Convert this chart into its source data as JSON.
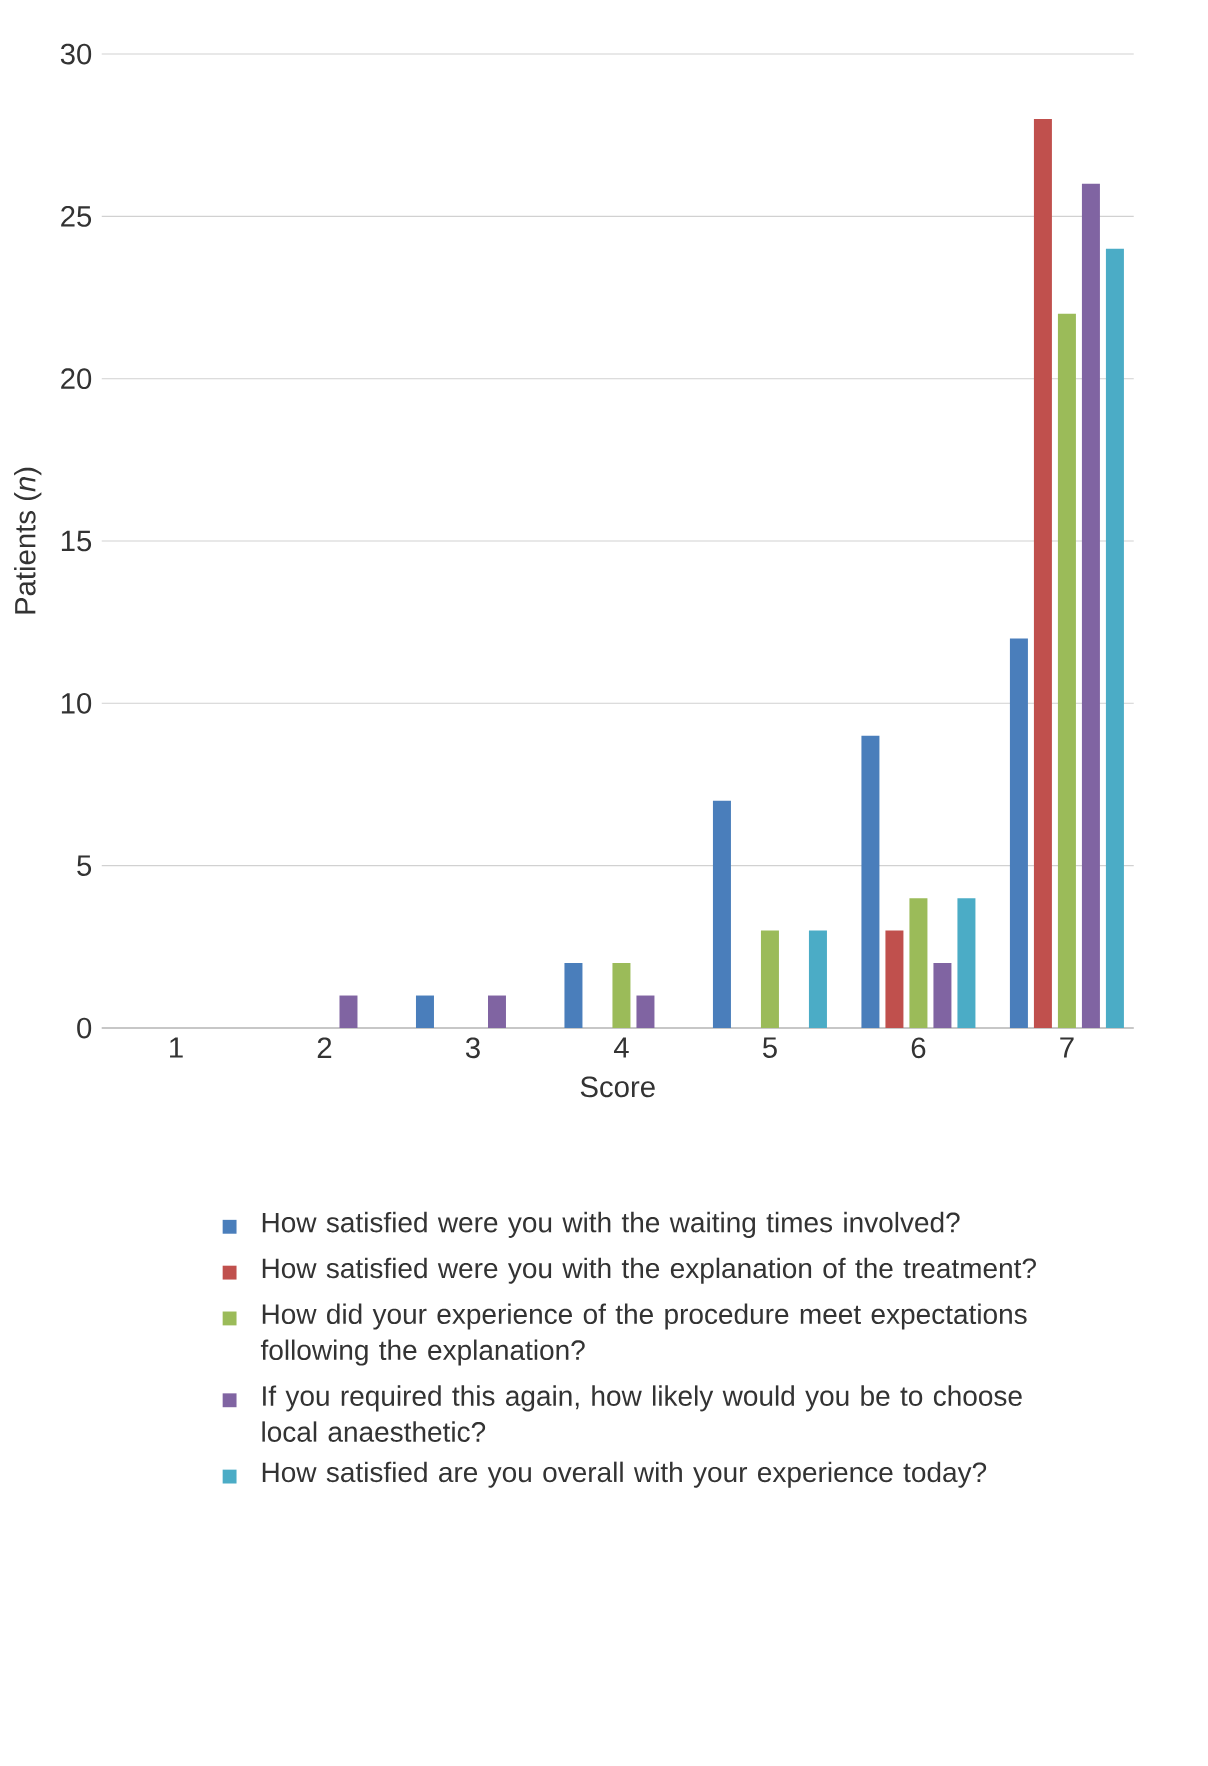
{
  "chart_data": {
    "type": "bar",
    "xlabel": "Score",
    "ylabel": "Patients (*n*)",
    "categories": [
      "1",
      "2",
      "3",
      "4",
      "5",
      "6",
      "7"
    ],
    "series": [
      {
        "name": "How satisfied were you with the waiting times involved?",
        "color": "#4a7ebb",
        "values": [
          0,
          0,
          1,
          2,
          7,
          9,
          12
        ]
      },
      {
        "name": "How satisfied were you with the explanation of the treatment?",
        "color": "#c0504d",
        "values": [
          0,
          0,
          0,
          0,
          0,
          3,
          28
        ]
      },
      {
        "name": "How did your experience of the procedure meet expectations following the explanation?",
        "color": "#9bbb59",
        "values": [
          0,
          0,
          0,
          2,
          3,
          4,
          22
        ]
      },
      {
        "name": "If you required this again, how likely would you be to choose local anaesthetic?",
        "color": "#8064a2",
        "values": [
          0,
          1,
          1,
          1,
          0,
          2,
          26
        ]
      },
      {
        "name": "How satisfied are you overall with your experience today?",
        "color": "#4bacc6",
        "values": [
          0,
          0,
          0,
          0,
          3,
          4,
          24
        ]
      }
    ],
    "ylim": [
      0,
      30
    ],
    "yticks": [
      0,
      5,
      10,
      15,
      20,
      25,
      30
    ],
    "grid": "y",
    "legend": "bottom"
  }
}
